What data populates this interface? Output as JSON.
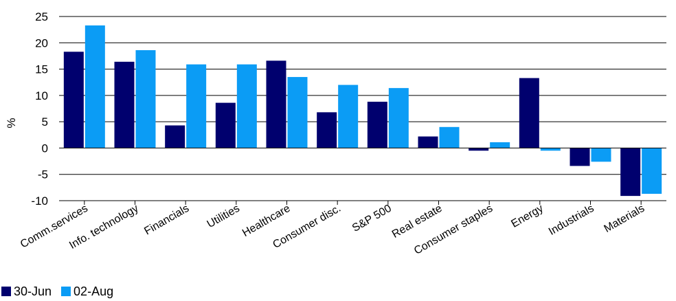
{
  "chart_data": {
    "type": "bar",
    "title": "",
    "xlabel": "",
    "ylabel": "%",
    "ylim": [
      -10,
      25
    ],
    "yticks": [
      25,
      20,
      15,
      10,
      5,
      0,
      -5,
      -10
    ],
    "grid": true,
    "legend_position": "bottom-left",
    "categories": [
      "Comm.services",
      "Info. technology",
      "Financials",
      "Utilities",
      "Healthcare",
      "Consumer disc.",
      "S&P 500",
      "Real estate",
      "Consumer staples",
      "Energy",
      "Industrials",
      "Materials"
    ],
    "series": [
      {
        "name": "30-Jun",
        "color": "#00006e",
        "values": [
          18.3,
          16.4,
          4.3,
          8.6,
          16.6,
          6.8,
          8.8,
          2.2,
          -0.5,
          13.3,
          -3.4,
          -9.1
        ]
      },
      {
        "name": "02-Aug",
        "color": "#0b9cf5",
        "values": [
          23.3,
          18.6,
          15.9,
          15.9,
          13.5,
          12.0,
          11.4,
          4.0,
          1.1,
          -0.5,
          -2.6,
          -8.7
        ]
      }
    ]
  }
}
